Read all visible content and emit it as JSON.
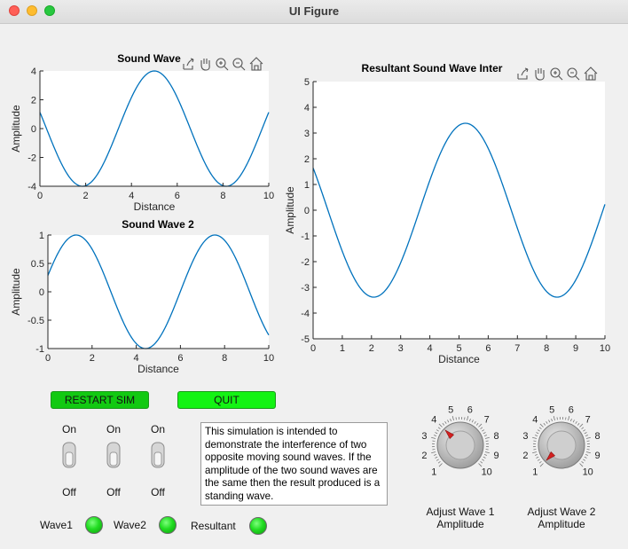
{
  "window": {
    "title": "UI Figure"
  },
  "toolbar_icons": [
    "export-icon",
    "pan-hand-icon",
    "zoom-in-icon",
    "zoom-out-icon",
    "home-icon"
  ],
  "plots": {
    "wave1": {
      "title": "Sound Wave",
      "xlabel": "Distance",
      "ylabel": "Amplitude"
    },
    "wave2": {
      "title": "Sound Wave 2",
      "xlabel": "Distance",
      "ylabel": "Amplitude"
    },
    "resultant": {
      "title": "Resultant Sound Wave Inter",
      "xlabel": "Distance",
      "ylabel": "Amplitude"
    }
  },
  "chart_data": [
    {
      "type": "line",
      "title": "Sound Wave",
      "xlabel": "Distance",
      "ylabel": "Amplitude",
      "xlim": [
        0,
        10
      ],
      "ylim": [
        -4,
        4
      ],
      "xticks": [
        "0",
        "2",
        "4",
        "6",
        "8",
        "10"
      ],
      "yticks": [
        "4",
        "2",
        "0",
        "-2",
        "-4"
      ],
      "function": {
        "amplitude": 4,
        "period": 6.2832,
        "phase": 5.0,
        "base": "cos"
      },
      "x": [
        0,
        1,
        2,
        3,
        4,
        5,
        6,
        7,
        8,
        9,
        10
      ],
      "y": [
        1.13,
        -2.61,
        -3.96,
        -1.66,
        2.16,
        4.0,
        2.16,
        -1.66,
        -3.96,
        -2.61,
        1.13
      ],
      "color": "#0072bd"
    },
    {
      "type": "line",
      "title": "Sound Wave 2",
      "xlabel": "Distance",
      "ylabel": "Amplitude",
      "xlim": [
        0,
        10
      ],
      "ylim": [
        -1,
        1
      ],
      "xticks": [
        "0",
        "2",
        "4",
        "6",
        "8",
        "10"
      ],
      "yticks": [
        "1",
        "0.5",
        "0",
        "-0.5",
        "-1"
      ],
      "function": {
        "amplitude": 1,
        "period": 6.2832,
        "phase": 1.28,
        "base": "cos"
      },
      "x": [
        0,
        1,
        2,
        3,
        4,
        5,
        6,
        7,
        8,
        9,
        10
      ],
      "y": [
        0.29,
        0.96,
        0.75,
        -0.22,
        -0.99,
        -0.78,
        0.16,
        0.94,
        0.86,
        -0.13,
        -0.78
      ],
      "color": "#0072bd"
    },
    {
      "type": "line",
      "title": "Resultant Sound Wave Inter",
      "xlabel": "Distance",
      "ylabel": "Amplitude",
      "xlim": [
        0,
        10
      ],
      "ylim": [
        -5,
        5
      ],
      "xticks": [
        "0",
        "1",
        "2",
        "3",
        "4",
        "5",
        "6",
        "7",
        "8",
        "9",
        "10"
      ],
      "yticks": [
        "5",
        "4",
        "3",
        "2",
        "1",
        "0",
        "-1",
        "-2",
        "-3",
        "-4",
        "-5"
      ],
      "function": {
        "amplitude": 3.38,
        "period": 6.2832,
        "phase": 5.22,
        "base": "cos"
      },
      "x": [
        0,
        1,
        2,
        3,
        4,
        5,
        6,
        7,
        8,
        9,
        10
      ],
      "y": [
        1.64,
        -1.88,
        -3.37,
        -2.05,
        1.48,
        3.32,
        2.08,
        -1.36,
        -3.3,
        -2.22,
        0.23
      ],
      "color": "#0072bd"
    }
  ],
  "buttons": {
    "restart": "RESTART SIM",
    "quit": "QUIT"
  },
  "switches": [
    {
      "on_label": "On",
      "off_label": "Off",
      "state": "off"
    },
    {
      "on_label": "On",
      "off_label": "Off",
      "state": "off"
    },
    {
      "on_label": "On",
      "off_label": "Off",
      "state": "off"
    }
  ],
  "note": "This simulation is intended to demonstrate the interference of two opposite moving sound waves. If the amplitude of the two sound waves are the same then the result produced is a standing wave.",
  "lamps": [
    {
      "label": "Wave1",
      "color": "#22dd22"
    },
    {
      "label": "Wave2",
      "color": "#22dd22"
    },
    {
      "label": "Resultant",
      "color": "#22dd22"
    }
  ],
  "knobs": [
    {
      "label": "Adjust Wave 1\nAmplitude",
      "label_line1": "Adjust Wave 1",
      "label_line2": "Amplitude",
      "value": 4,
      "min": 1,
      "max": 10,
      "ticks": [
        "1",
        "2",
        "3",
        "4",
        "5",
        "6",
        "7",
        "8",
        "9",
        "10"
      ]
    },
    {
      "label": "Adjust Wave 2\nAmplitude",
      "label_line1": "Adjust Wave 2",
      "label_line2": "Amplitude",
      "value": 1,
      "min": 1,
      "max": 10,
      "ticks": [
        "1",
        "2",
        "3",
        "4",
        "5",
        "6",
        "7",
        "8",
        "9",
        "10"
      ]
    }
  ]
}
